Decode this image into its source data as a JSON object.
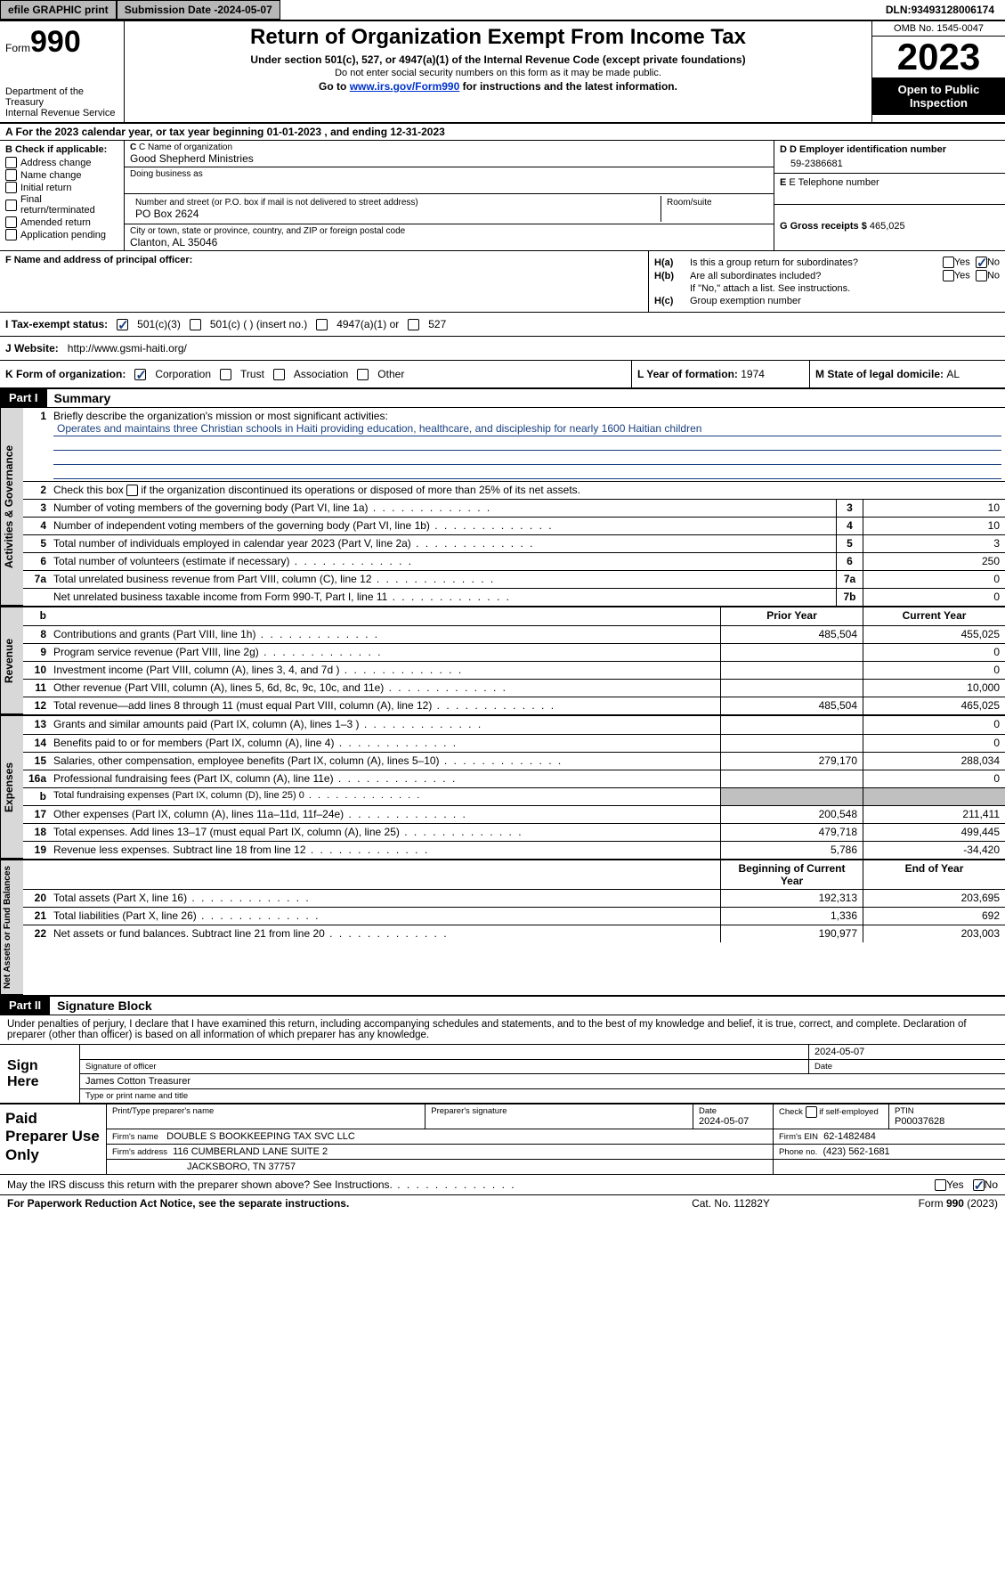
{
  "topbar": {
    "efile": "efile GRAPHIC print",
    "submission_label": "Submission Date - ",
    "submission_date": "2024-05-07",
    "dln_label": "DLN: ",
    "dln": "93493128006174"
  },
  "header": {
    "form_prefix": "Form",
    "form_number": "990",
    "dept": "Department of the Treasury\nInternal Revenue Service",
    "title": "Return of Organization Exempt From Income Tax",
    "sub1": "Under section 501(c), 527, or 4947(a)(1) of the Internal Revenue Code (except private foundations)",
    "sub2": "Do not enter social security numbers on this form as it may be made public.",
    "sub3_pre": "Go to ",
    "sub3_link": "www.irs.gov/Form990",
    "sub3_post": " for instructions and the latest information.",
    "omb": "OMB No. 1545-0047",
    "year": "2023",
    "open": "Open to Public Inspection"
  },
  "row_a": {
    "text_pre": "A For the 2023 calendar year, or tax year beginning ",
    "begin": "01-01-2023",
    "mid": " , and ending ",
    "end": "12-31-2023"
  },
  "col_b": {
    "label": "B Check if applicable:",
    "items": [
      "Address change",
      "Name change",
      "Initial return",
      "Final return/terminated",
      "Amended return",
      "Application pending"
    ]
  },
  "col_c": {
    "name_lbl": "C Name of organization",
    "name": "Good Shepherd Ministries",
    "dba_lbl": "Doing business as",
    "dba": "",
    "addr_lbl": "Number and street (or P.O. box if mail is not delivered to street address)",
    "addr": "PO Box 2624",
    "room_lbl": "Room/suite",
    "room": "",
    "city_lbl": "City or town, state or province, country, and ZIP or foreign postal code",
    "city": "Clanton, AL  35046"
  },
  "col_d": {
    "ein_lbl": "D Employer identification number",
    "ein": "59-2386681",
    "tel_lbl": "E Telephone number",
    "tel": "",
    "gross_lbl": "G Gross receipts $ ",
    "gross": "465,025"
  },
  "col_f": {
    "lbl": "F  Name and address of principal officer:",
    "val": ""
  },
  "col_h": {
    "a_lbl": "H(a)",
    "a_text": "Is this a group return for subordinates?",
    "a_yes": "Yes",
    "a_no": "No",
    "b_lbl": "H(b)",
    "b_text": "Are all subordinates included?",
    "b_yes": "Yes",
    "b_no": "No",
    "b_note": "If \"No,\" attach a list. See instructions.",
    "c_lbl": "H(c)",
    "c_text": "Group exemption number"
  },
  "row_i": {
    "lbl": "I  Tax-exempt status:",
    "opt1": "501(c)(3)",
    "opt2": "501(c) (  ) (insert no.)",
    "opt3": "4947(a)(1) or",
    "opt4": "527"
  },
  "row_j": {
    "lbl": "J  Website:",
    "val": "http://www.gsmi-haiti.org/"
  },
  "row_k": {
    "lbl": "K Form of organization:",
    "opt1": "Corporation",
    "opt2": "Trust",
    "opt3": "Association",
    "opt4": "Other"
  },
  "row_l": {
    "lbl": "L Year of formation: ",
    "val": "1974"
  },
  "row_m": {
    "lbl": "M State of legal domicile: ",
    "val": "AL"
  },
  "part1": {
    "hdr": "Part I",
    "title": "Summary"
  },
  "summary": {
    "govtab": "Activities & Governance",
    "line1_lbl": "Briefly describe the organization's mission or most significant activities:",
    "line1_mission": "Operates and maintains three Christian schools in Haiti providing education, healthcare, and discipleship for nearly 1600 Haitian children",
    "line2": "Check this box        if the organization discontinued its operations or disposed of more than 25% of its net assets.",
    "lines_gov": [
      {
        "n": "3",
        "d": "Number of voting members of the governing body (Part VI, line 1a)",
        "bn": "3",
        "bv": "10"
      },
      {
        "n": "4",
        "d": "Number of independent voting members of the governing body (Part VI, line 1b)",
        "bn": "4",
        "bv": "10"
      },
      {
        "n": "5",
        "d": "Total number of individuals employed in calendar year 2023 (Part V, line 2a)",
        "bn": "5",
        "bv": "3"
      },
      {
        "n": "6",
        "d": "Total number of volunteers (estimate if necessary)",
        "bn": "6",
        "bv": "250"
      },
      {
        "n": "7a",
        "d": "Total unrelated business revenue from Part VIII, column (C), line 12",
        "bn": "7a",
        "bv": "0"
      },
      {
        "n": "",
        "d": "Net unrelated business taxable income from Form 990-T, Part I, line 11",
        "bn": "7b",
        "bv": "0"
      }
    ],
    "revtab": "Revenue",
    "col_hdr_b": "b",
    "col_hdr_py": "Prior Year",
    "col_hdr_cy": "Current Year",
    "lines_rev": [
      {
        "n": "8",
        "d": "Contributions and grants (Part VIII, line 1h)",
        "py": "485,504",
        "cy": "455,025"
      },
      {
        "n": "9",
        "d": "Program service revenue (Part VIII, line 2g)",
        "py": "",
        "cy": "0"
      },
      {
        "n": "10",
        "d": "Investment income (Part VIII, column (A), lines 3, 4, and 7d )",
        "py": "",
        "cy": "0"
      },
      {
        "n": "11",
        "d": "Other revenue (Part VIII, column (A), lines 5, 6d, 8c, 9c, 10c, and 11e)",
        "py": "",
        "cy": "10,000"
      },
      {
        "n": "12",
        "d": "Total revenue—add lines 8 through 11 (must equal Part VIII, column (A), line 12)",
        "py": "485,504",
        "cy": "465,025"
      }
    ],
    "exptab": "Expenses",
    "lines_exp": [
      {
        "n": "13",
        "d": "Grants and similar amounts paid (Part IX, column (A), lines 1–3 )",
        "py": "",
        "cy": "0"
      },
      {
        "n": "14",
        "d": "Benefits paid to or for members (Part IX, column (A), line 4)",
        "py": "",
        "cy": "0"
      },
      {
        "n": "15",
        "d": "Salaries, other compensation, employee benefits (Part IX, column (A), lines 5–10)",
        "py": "279,170",
        "cy": "288,034"
      },
      {
        "n": "16a",
        "d": "Professional fundraising fees (Part IX, column (A), line 11e)",
        "py": "",
        "cy": "0"
      },
      {
        "n": "b",
        "d": "Total fundraising expenses (Part IX, column (D), line 25) 0",
        "py": "SHADE",
        "cy": "SHADE",
        "small": true
      },
      {
        "n": "17",
        "d": "Other expenses (Part IX, column (A), lines 11a–11d, 11f–24e)",
        "py": "200,548",
        "cy": "211,411"
      },
      {
        "n": "18",
        "d": "Total expenses. Add lines 13–17 (must equal Part IX, column (A), line 25)",
        "py": "479,718",
        "cy": "499,445"
      },
      {
        "n": "19",
        "d": "Revenue less expenses. Subtract line 18 from line 12",
        "py": "5,786",
        "cy": "-34,420"
      }
    ],
    "nettab": "Net Assets or Fund Balances",
    "col_hdr_boy": "Beginning of Current Year",
    "col_hdr_eoy": "End of Year",
    "lines_net": [
      {
        "n": "20",
        "d": "Total assets (Part X, line 16)",
        "py": "192,313",
        "cy": "203,695"
      },
      {
        "n": "21",
        "d": "Total liabilities (Part X, line 26)",
        "py": "1,336",
        "cy": "692"
      },
      {
        "n": "22",
        "d": "Net assets or fund balances. Subtract line 21 from line 20",
        "py": "190,977",
        "cy": "203,003"
      }
    ]
  },
  "part2": {
    "hdr": "Part II",
    "title": "Signature Block"
  },
  "sig": {
    "intro": "Under penalties of perjury, I declare that I have examined this return, including accompanying schedules and statements, and to the best of my knowledge and belief, it is true, correct, and complete. Declaration of preparer (other than officer) is based on all information of which preparer has any knowledge.",
    "sign_here": "Sign Here",
    "sig_date": "2024-05-07",
    "sig_officer_lbl": "Signature of officer",
    "sig_date_lbl": "Date",
    "officer_name": "James Cotton Treasurer",
    "officer_lbl": "Type or print name and title"
  },
  "prep": {
    "label": "Paid Preparer Use Only",
    "c1": "Print/Type preparer's name",
    "c2": "Preparer's signature",
    "c3_lbl": "Date",
    "c3": "2024-05-07",
    "c4_lbl": "Check        if self-employed",
    "c5_lbl": "PTIN",
    "c5": "P00037628",
    "firm_name_lbl": "Firm's name",
    "firm_name": "DOUBLE S BOOKKEEPING TAX SVC LLC",
    "firm_ein_lbl": "Firm's EIN",
    "firm_ein": "62-1482484",
    "firm_addr_lbl": "Firm's address",
    "firm_addr1": "116 CUMBERLAND LANE SUITE 2",
    "firm_addr2": "JACKSBORO, TN  37757",
    "firm_phone_lbl": "Phone no.",
    "firm_phone": "(423) 562-1681"
  },
  "foot": {
    "discuss": "May the IRS discuss this return with the preparer shown above? See Instructions.",
    "yes": "Yes",
    "no": "No",
    "pra": "For Paperwork Reduction Act Notice, see the separate instructions.",
    "cat": "Cat. No. 11282Y",
    "form": "Form 990 (2023)"
  }
}
